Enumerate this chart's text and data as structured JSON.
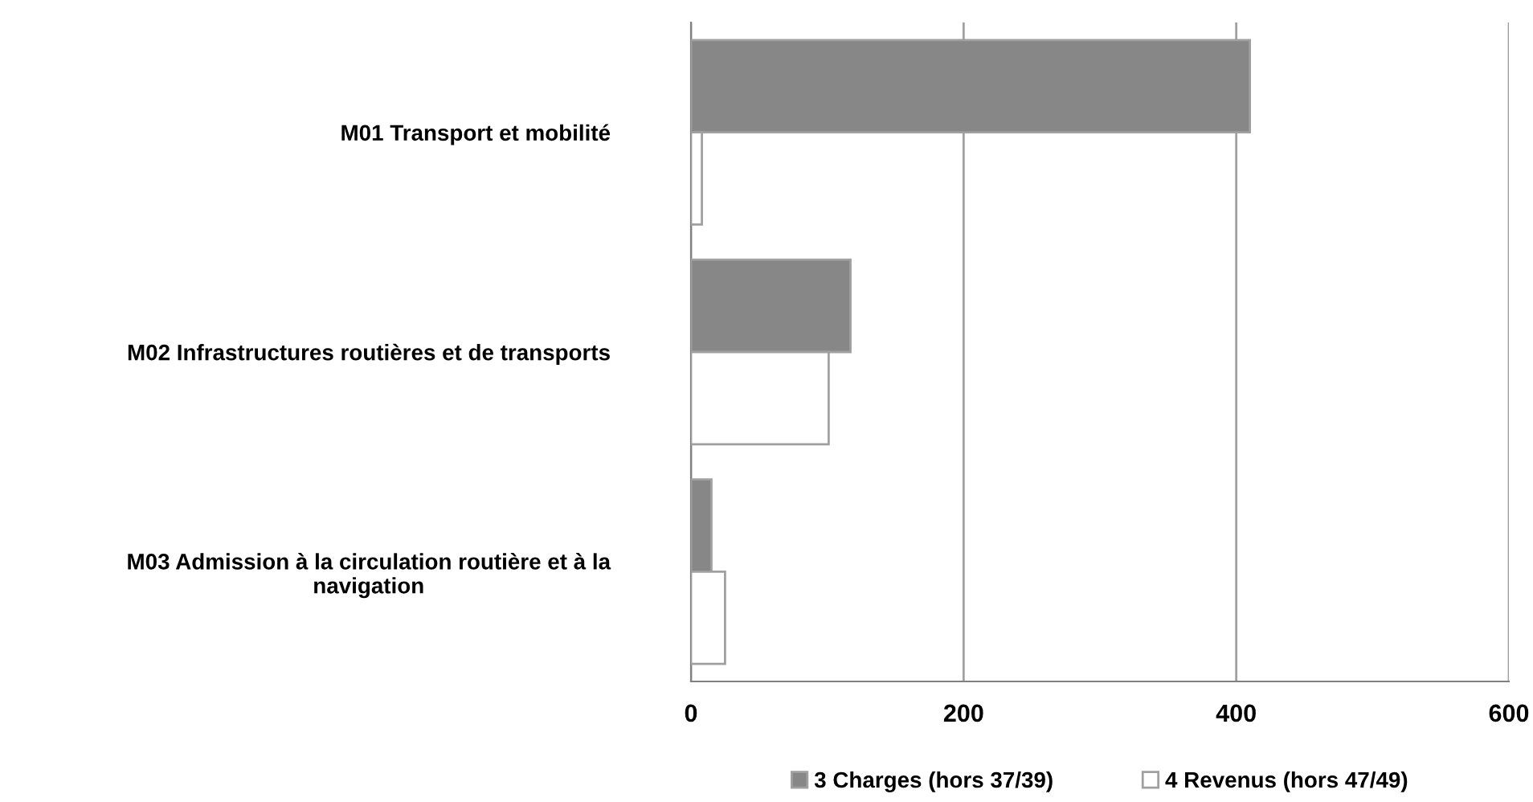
{
  "chart_data": {
    "type": "bar",
    "orientation": "horizontal",
    "categories": [
      "M01 Transport et mobilité",
      "M02 Infrastructures routières et de transports",
      "M03 Admission à la circulation routière et à la\nnavigation"
    ],
    "series": [
      {
        "name": "3 Charges (hors 37/39)",
        "color": "#878787",
        "values": [
          410,
          117,
          15
        ]
      },
      {
        "name": "4 Revenus (hors 47/49)",
        "color": "#ffffff",
        "values": [
          8,
          101,
          25
        ]
      }
    ],
    "xlim": [
      0,
      600
    ],
    "xticks": [
      0,
      200,
      400,
      600
    ],
    "grid": "x",
    "legend": "bottom"
  }
}
